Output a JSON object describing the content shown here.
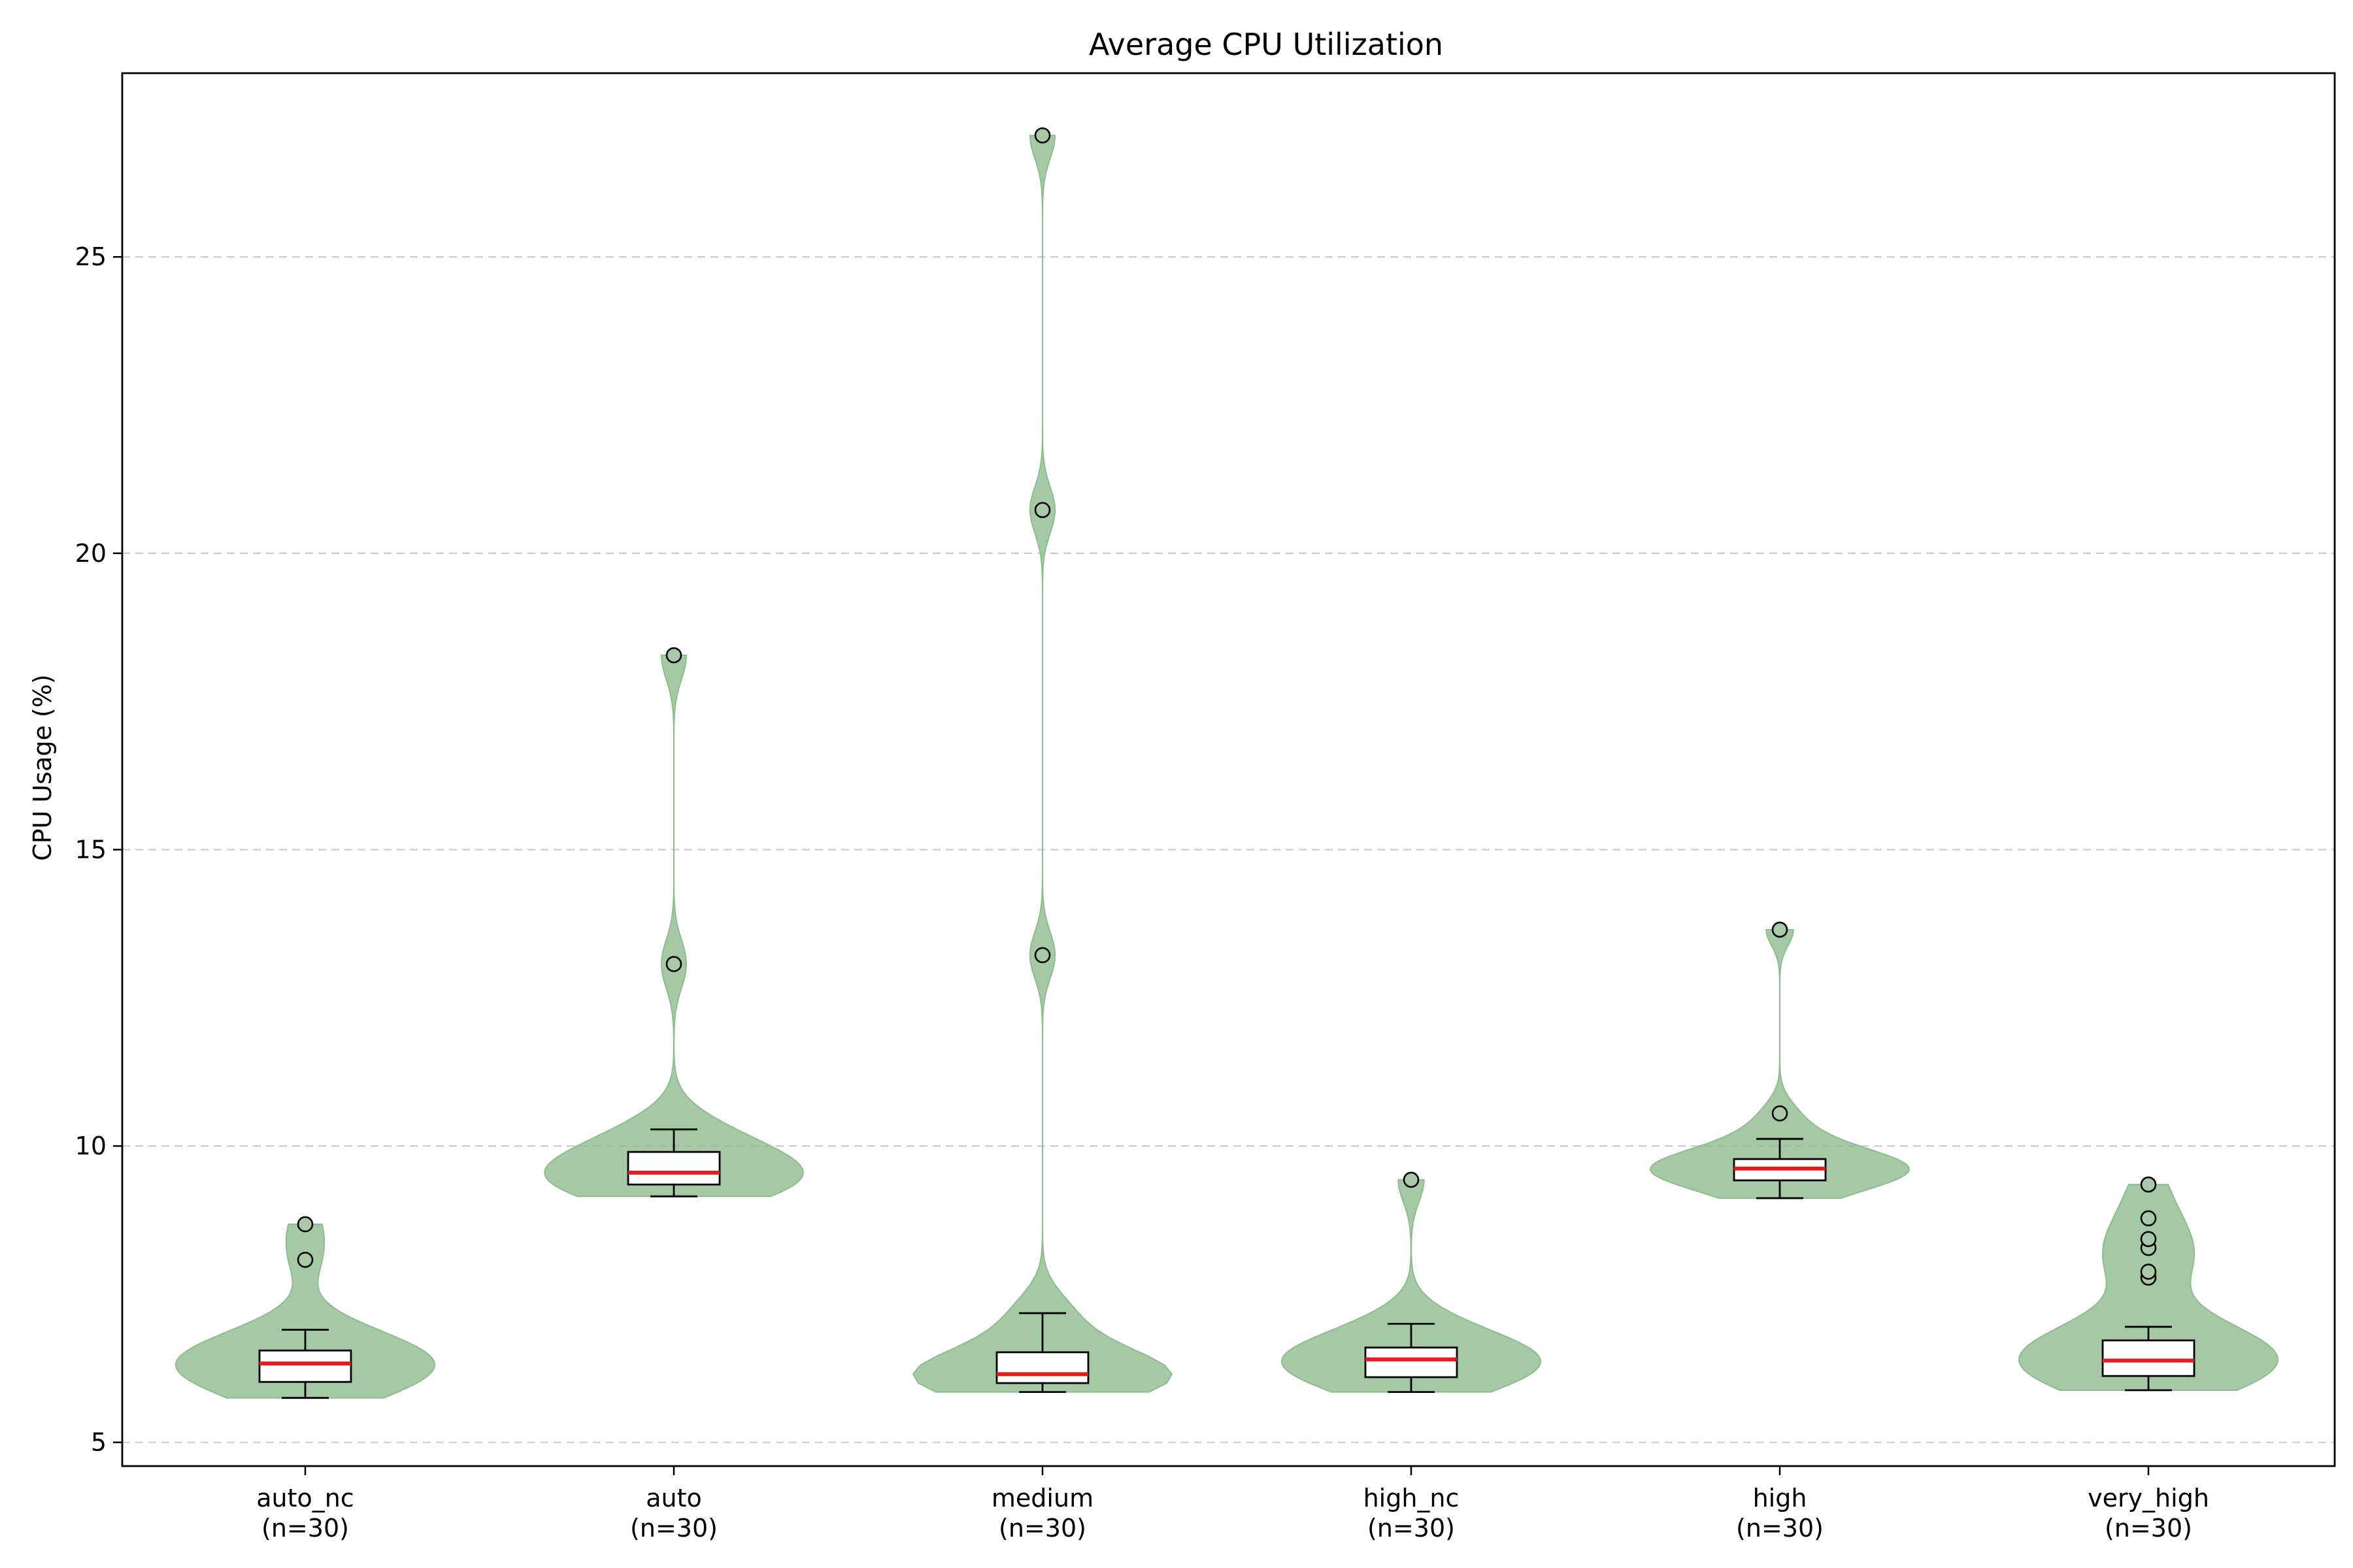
{
  "chart_data": {
    "type": "violin",
    "title": "Average CPU Utilization",
    "xlabel": "",
    "ylabel": "CPU Usage (%)",
    "ylim": [
      4.6,
      28.1
    ],
    "yticks": [
      5,
      10,
      15,
      20,
      25
    ],
    "grid": "y-dashed",
    "colors": {
      "violin": "#8fbc8f",
      "median": "#e41a1c",
      "box": "#000000",
      "outlier_fill": "#a8c8a8"
    },
    "groups": [
      {
        "name": "auto_nc",
        "label_n": "(n=30)",
        "whisker_low": 5.75,
        "q1": 6.02,
        "median": 6.33,
        "q3": 6.55,
        "whisker_high": 6.9,
        "violin_min": 5.75,
        "violin_max": 8.68,
        "outliers": [
          8.08,
          8.68
        ]
      },
      {
        "name": "auto",
        "label_n": "(n=30)",
        "whisker_low": 9.15,
        "q1": 9.35,
        "median": 9.55,
        "q3": 9.9,
        "whisker_high": 10.28,
        "violin_min": 9.15,
        "violin_max": 18.28,
        "outliers": [
          13.07,
          18.28
        ]
      },
      {
        "name": "medium",
        "label_n": "(n=30)",
        "whisker_low": 5.85,
        "q1": 6.0,
        "median": 6.15,
        "q3": 6.52,
        "whisker_high": 7.18,
        "violin_min": 5.85,
        "violin_max": 27.05,
        "outliers": [
          13.22,
          20.73,
          27.05
        ]
      },
      {
        "name": "high_nc",
        "label_n": "(n=30)",
        "whisker_low": 5.85,
        "q1": 6.1,
        "median": 6.4,
        "q3": 6.6,
        "whisker_high": 7.0,
        "violin_min": 5.85,
        "violin_max": 9.43,
        "outliers": [
          9.43
        ]
      },
      {
        "name": "high",
        "label_n": "(n=30)",
        "whisker_low": 9.12,
        "q1": 9.42,
        "median": 9.62,
        "q3": 9.78,
        "whisker_high": 10.12,
        "violin_min": 9.12,
        "violin_max": 13.65,
        "outliers": [
          10.55,
          13.65
        ]
      },
      {
        "name": "very_high",
        "label_n": "(n=30)",
        "whisker_low": 5.88,
        "q1": 6.12,
        "median": 6.38,
        "q3": 6.72,
        "whisker_high": 6.95,
        "violin_min": 5.88,
        "violin_max": 9.35,
        "outliers": [
          7.78,
          7.88,
          8.28,
          8.43,
          8.78,
          9.35
        ]
      }
    ]
  }
}
